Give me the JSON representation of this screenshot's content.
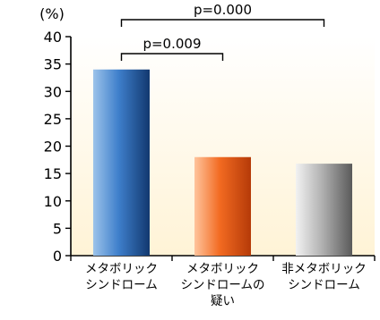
{
  "chart_data": {
    "type": "bar",
    "unit_label": "(%)",
    "ylim": [
      0,
      40
    ],
    "yticks": [
      0,
      5,
      10,
      15,
      20,
      25,
      30,
      35,
      40
    ],
    "categories": [
      {
        "lines": [
          "メタボリック",
          "シンドローム"
        ]
      },
      {
        "lines": [
          "メタボリック",
          "シンドロームの",
          "疑い"
        ]
      },
      {
        "lines": [
          "非メタボリック",
          "シンドローム"
        ]
      }
    ],
    "values": [
      34,
      18,
      16.8
    ],
    "bar_colors": [
      {
        "light": "#9cc3ea",
        "mid": "#3e7fcb",
        "dark": "#12386f"
      },
      {
        "light": "#ffc49c",
        "mid": "#f26a21",
        "dark": "#b53a08"
      },
      {
        "light": "#f2f2f2",
        "mid": "#b3b3b3",
        "dark": "#5a5a5a"
      }
    ],
    "annotations": [
      {
        "label": "p=0.009",
        "from": 0,
        "to": 1,
        "level": 1
      },
      {
        "label": "p=0.000",
        "from": 0,
        "to": 2,
        "level": 2
      }
    ],
    "background_gradient": [
      "#ffffff",
      "#fff3d6"
    ]
  }
}
